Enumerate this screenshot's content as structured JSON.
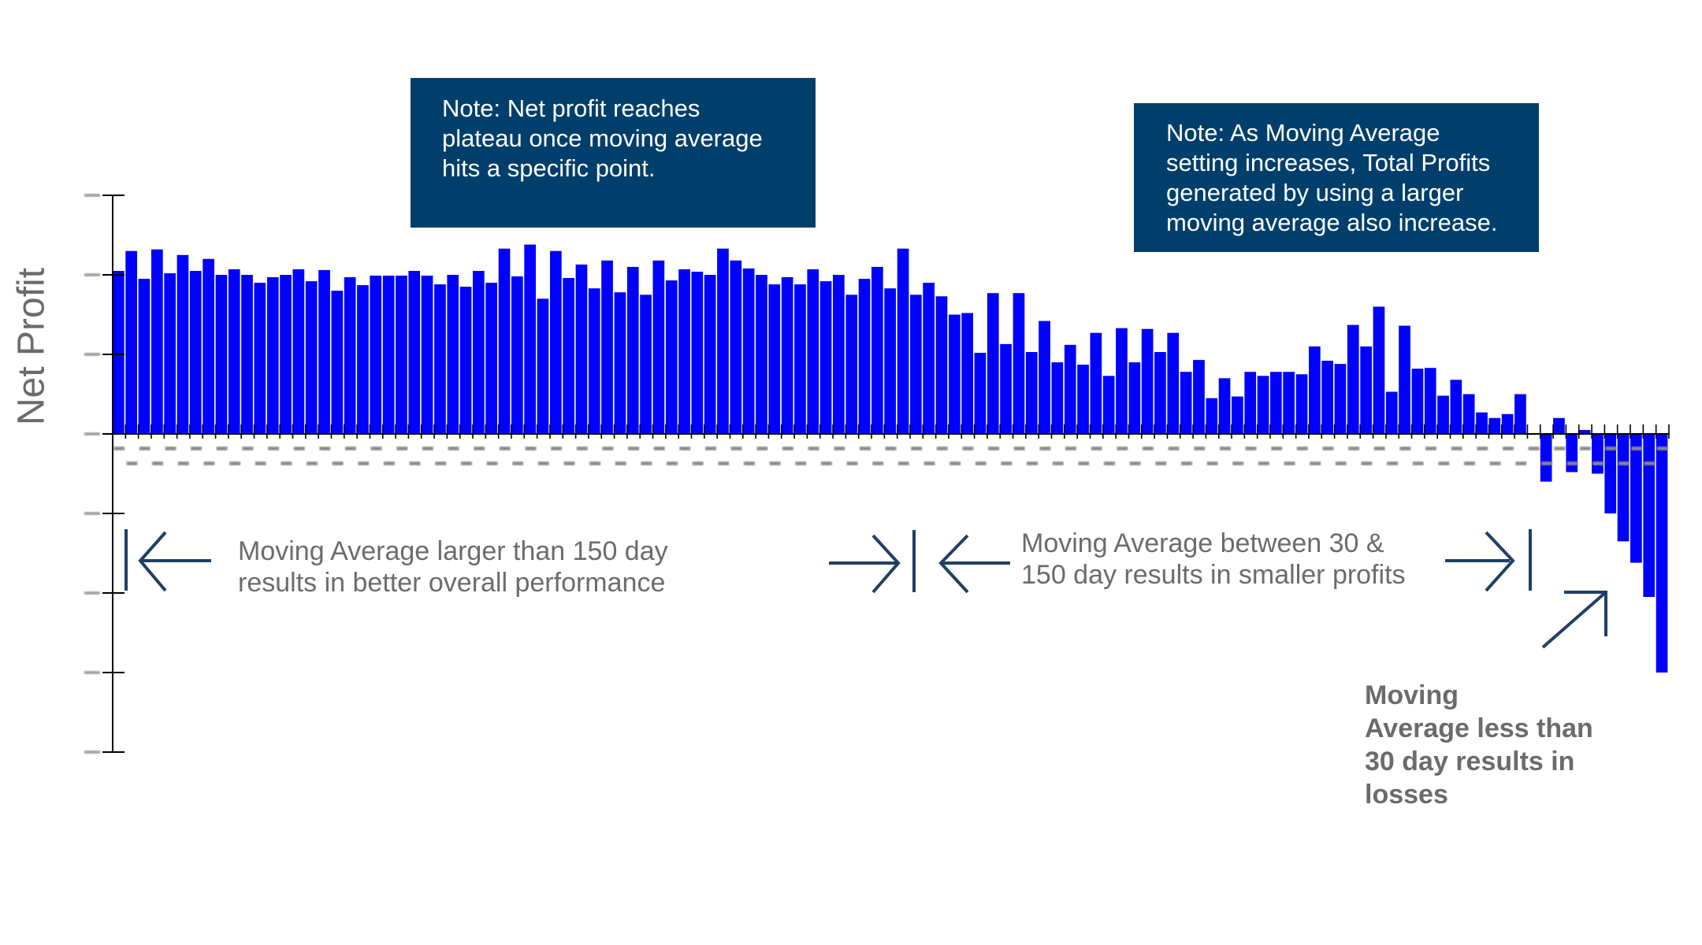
{
  "notes": {
    "left": "Note: Net profit reaches\nplateau once moving average\nhits a specific point.",
    "right": "Note: As Moving Average\nsetting increases, Total Profits\ngenerated by using a larger\nmoving average also increase."
  },
  "regions": {
    "long": "Moving Average  larger than 150 day\nresults in better overall performance",
    "mid": "Moving Average  between 30  &\n150 day results in smaller profits",
    "short": "Moving\nAverage  less than\n30 day results in\nlosses"
  },
  "colors": {
    "bar": "#0000ff",
    "note_bg": "#003f6b",
    "arrow": "#1f3f66",
    "region_text": "#6b6b6b"
  },
  "chart_data": {
    "type": "bar",
    "ylabel": "Net Profit",
    "ylim": [
      -4,
      3
    ],
    "grid": false,
    "legend": "none",
    "values": [
      2.05,
      2.3,
      1.95,
      2.32,
      2.02,
      2.25,
      2.05,
      2.2,
      2.0,
      2.07,
      2.0,
      1.9,
      1.97,
      2.0,
      2.07,
      1.92,
      2.06,
      1.8,
      1.97,
      1.87,
      1.99,
      1.99,
      1.99,
      2.05,
      1.99,
      1.88,
      2.0,
      1.85,
      2.05,
      1.9,
      2.33,
      1.98,
      2.38,
      1.7,
      2.3,
      1.96,
      2.13,
      1.83,
      2.18,
      1.78,
      2.1,
      1.75,
      2.18,
      1.93,
      2.07,
      2.04,
      2.0,
      2.33,
      2.18,
      2.08,
      2.0,
      1.88,
      1.97,
      1.88,
      2.07,
      1.92,
      2.0,
      1.75,
      1.95,
      2.1,
      1.83,
      2.33,
      1.75,
      1.9,
      1.73,
      1.5,
      1.52,
      1.02,
      1.77,
      1.13,
      1.77,
      1.03,
      1.42,
      0.9,
      1.12,
      0.87,
      1.27,
      0.73,
      1.33,
      0.9,
      1.32,
      1.03,
      1.27,
      0.78,
      0.93,
      0.45,
      0.7,
      0.47,
      0.78,
      0.73,
      0.78,
      0.78,
      0.75,
      1.1,
      0.92,
      0.88,
      1.37,
      1.1,
      1.6,
      0.53,
      1.36,
      0.82,
      0.83,
      0.48,
      0.68,
      0.5,
      0.27,
      0.2,
      0.25,
      0.5,
      0.0,
      -0.6,
      0.2,
      -0.48,
      0.05,
      -0.5,
      -1.0,
      -1.35,
      -1.62,
      -2.05,
      -3.0
    ]
  }
}
